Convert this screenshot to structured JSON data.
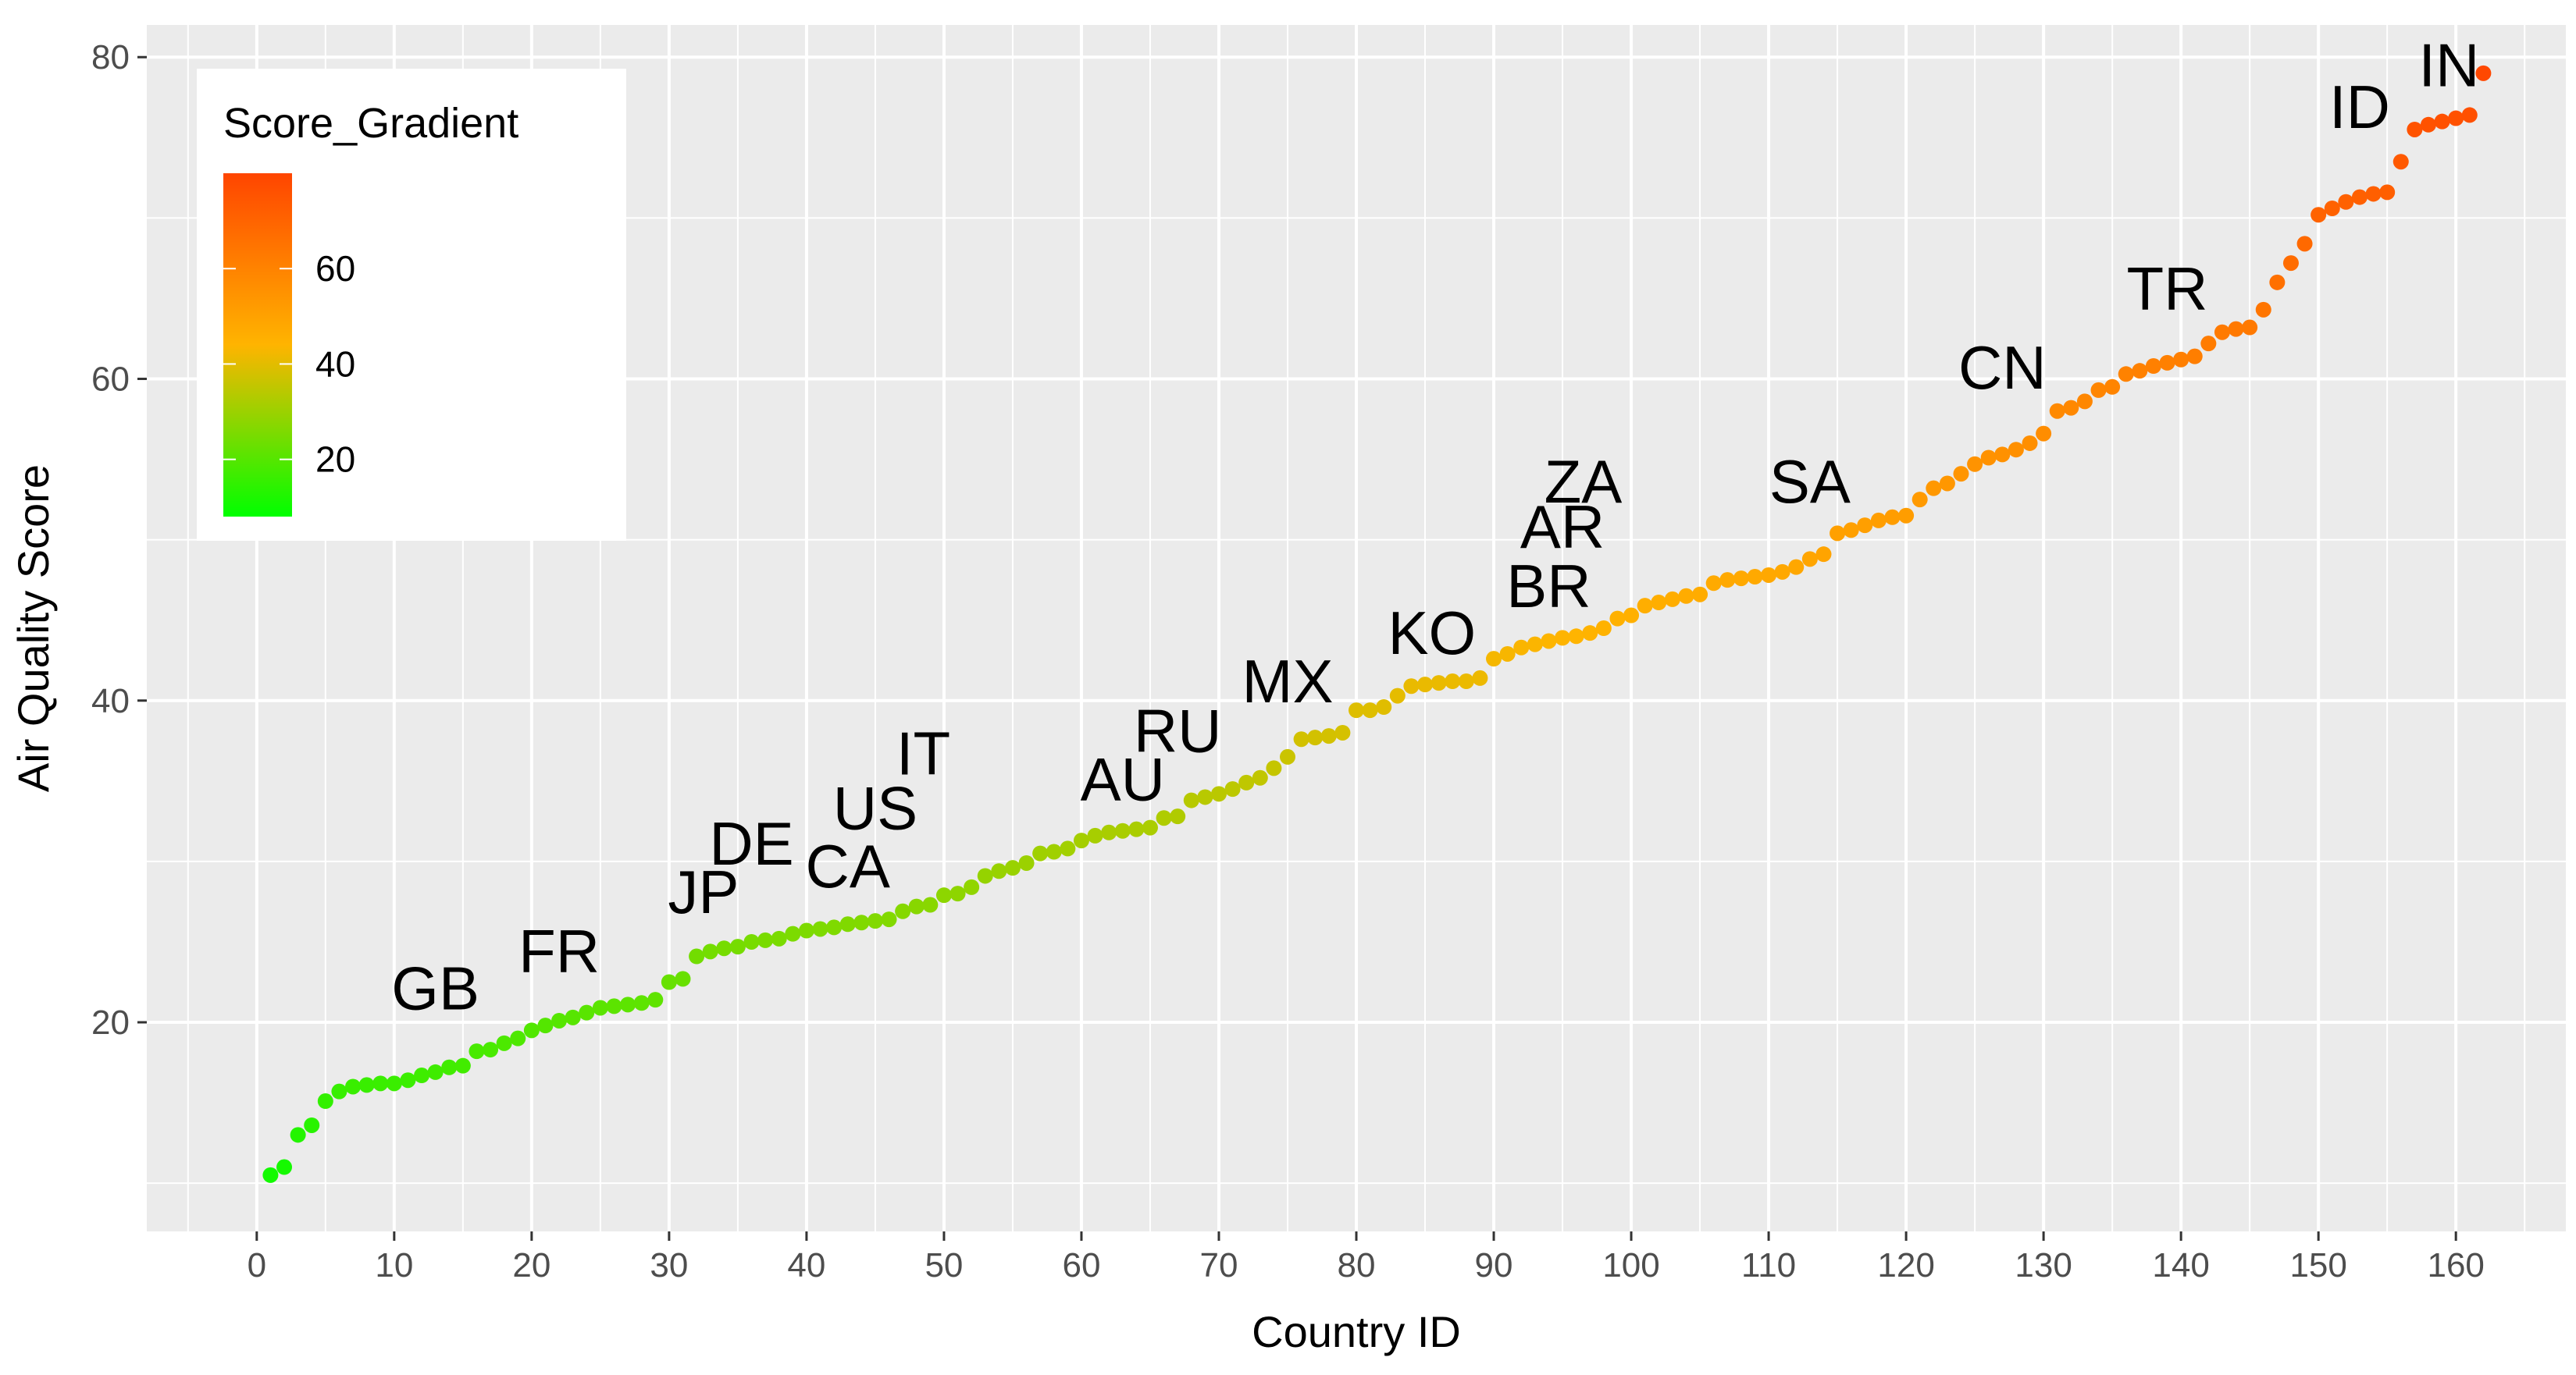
{
  "chart_data": {
    "type": "scatter",
    "xlabel": "Country ID",
    "ylabel": "Air Quality Score",
    "xlim": [
      -8,
      168
    ],
    "ylim": [
      7,
      82
    ],
    "x_ticks": [
      0,
      10,
      20,
      30,
      40,
      50,
      60,
      70,
      80,
      90,
      100,
      110,
      120,
      130,
      140,
      150,
      160
    ],
    "y_ticks": [
      20,
      40,
      60,
      80
    ],
    "grid": true,
    "legend": {
      "title": "Score_Gradient",
      "placement": "top-left",
      "range": [
        8,
        80
      ],
      "ticks": [
        20,
        40,
        60
      ],
      "colors": {
        "low": "#00FF00",
        "mid": "#FFB400",
        "high": "#FF4500"
      }
    },
    "panel_background": "#EBEBEB",
    "points": [
      [
        1,
        10.5
      ],
      [
        2,
        11
      ],
      [
        3,
        13
      ],
      [
        4,
        13.6
      ],
      [
        5,
        15.1
      ],
      [
        6,
        15.7
      ],
      [
        7,
        16.0
      ],
      [
        8,
        16.1
      ],
      [
        9,
        16.2
      ],
      [
        10,
        16.2
      ],
      [
        11,
        16.4
      ],
      [
        12,
        16.7
      ],
      [
        13,
        16.9
      ],
      [
        14,
        17.2
      ],
      [
        15,
        17.3
      ],
      [
        16,
        18.2
      ],
      [
        17,
        18.3
      ],
      [
        18,
        18.7
      ],
      [
        19,
        19.0
      ],
      [
        20,
        19.5
      ],
      [
        21,
        19.8
      ],
      [
        22,
        20.1
      ],
      [
        23,
        20.3
      ],
      [
        24,
        20.6
      ],
      [
        25,
        20.9
      ],
      [
        26,
        21.0
      ],
      [
        27,
        21.1
      ],
      [
        28,
        21.2
      ],
      [
        29,
        21.4
      ],
      [
        30,
        22.5
      ],
      [
        31,
        22.7
      ],
      [
        32,
        24.1
      ],
      [
        33,
        24.4
      ],
      [
        34,
        24.6
      ],
      [
        35,
        24.7
      ],
      [
        36,
        25.0
      ],
      [
        37,
        25.1
      ],
      [
        38,
        25.2
      ],
      [
        39,
        25.5
      ],
      [
        40,
        25.7
      ],
      [
        41,
        25.8
      ],
      [
        42,
        25.9
      ],
      [
        43,
        26.1
      ],
      [
        44,
        26.2
      ],
      [
        45,
        26.3
      ],
      [
        46,
        26.4
      ],
      [
        47,
        26.9
      ],
      [
        48,
        27.2
      ],
      [
        49,
        27.3
      ],
      [
        50,
        27.9
      ],
      [
        51,
        28.0
      ],
      [
        52,
        28.4
      ],
      [
        53,
        29.1
      ],
      [
        54,
        29.4
      ],
      [
        55,
        29.6
      ],
      [
        56,
        29.9
      ],
      [
        57,
        30.5
      ],
      [
        58,
        30.6
      ],
      [
        59,
        30.8
      ],
      [
        60,
        31.3
      ],
      [
        61,
        31.6
      ],
      [
        62,
        31.8
      ],
      [
        63,
        31.9
      ],
      [
        64,
        32.0
      ],
      [
        65,
        32.1
      ],
      [
        66,
        32.7
      ],
      [
        67,
        32.8
      ],
      [
        68,
        33.8
      ],
      [
        69,
        34.0
      ],
      [
        70,
        34.2
      ],
      [
        71,
        34.5
      ],
      [
        72,
        34.9
      ],
      [
        73,
        35.2
      ],
      [
        74,
        35.8
      ],
      [
        75,
        36.5
      ],
      [
        76,
        37.6
      ],
      [
        77,
        37.7
      ],
      [
        78,
        37.8
      ],
      [
        79,
        38.0
      ],
      [
        80,
        39.4
      ],
      [
        81,
        39.4
      ],
      [
        82,
        39.6
      ],
      [
        83,
        40.3
      ],
      [
        84,
        40.9
      ],
      [
        85,
        41.0
      ],
      [
        86,
        41.1
      ],
      [
        87,
        41.2
      ],
      [
        88,
        41.2
      ],
      [
        89,
        41.4
      ],
      [
        90,
        42.6
      ],
      [
        91,
        42.9
      ],
      [
        92,
        43.3
      ],
      [
        93,
        43.5
      ],
      [
        94,
        43.7
      ],
      [
        95,
        43.9
      ],
      [
        96,
        44.0
      ],
      [
        97,
        44.2
      ],
      [
        98,
        44.5
      ],
      [
        99,
        45.1
      ],
      [
        100,
        45.3
      ],
      [
        101,
        45.9
      ],
      [
        102,
        46.1
      ],
      [
        103,
        46.3
      ],
      [
        104,
        46.5
      ],
      [
        105,
        46.6
      ],
      [
        106,
        47.3
      ],
      [
        107,
        47.5
      ],
      [
        108,
        47.6
      ],
      [
        109,
        47.7
      ],
      [
        110,
        47.8
      ],
      [
        111,
        48.0
      ],
      [
        112,
        48.3
      ],
      [
        113,
        48.8
      ],
      [
        114,
        49.1
      ],
      [
        115,
        50.4
      ],
      [
        116,
        50.6
      ],
      [
        117,
        50.9
      ],
      [
        118,
        51.2
      ],
      [
        119,
        51.4
      ],
      [
        120,
        51.5
      ],
      [
        121,
        52.5
      ],
      [
        122,
        53.2
      ],
      [
        123,
        53.5
      ],
      [
        124,
        54.1
      ],
      [
        125,
        54.7
      ],
      [
        126,
        55.1
      ],
      [
        127,
        55.3
      ],
      [
        128,
        55.6
      ],
      [
        129,
        56.0
      ],
      [
        130,
        56.6
      ],
      [
        131,
        58.0
      ],
      [
        132,
        58.2
      ],
      [
        133,
        58.6
      ],
      [
        134,
        59.3
      ],
      [
        135,
        59.5
      ],
      [
        136,
        60.3
      ],
      [
        137,
        60.5
      ],
      [
        138,
        60.8
      ],
      [
        139,
        61.0
      ],
      [
        140,
        61.2
      ],
      [
        141,
        61.4
      ],
      [
        142,
        62.2
      ],
      [
        143,
        62.9
      ],
      [
        144,
        63.1
      ],
      [
        145,
        63.2
      ],
      [
        146,
        64.3
      ],
      [
        147,
        66.0
      ],
      [
        148,
        67.2
      ],
      [
        149,
        68.4
      ],
      [
        150,
        70.2
      ],
      [
        151,
        70.6
      ],
      [
        152,
        71.0
      ],
      [
        153,
        71.3
      ],
      [
        154,
        71.5
      ],
      [
        155,
        71.6
      ],
      [
        156,
        73.5
      ],
      [
        157,
        75.5
      ],
      [
        158,
        75.8
      ],
      [
        159,
        76.0
      ],
      [
        160,
        76.2
      ],
      [
        161,
        76.4
      ],
      [
        162,
        79.0
      ]
    ],
    "labels": [
      {
        "text": "GB",
        "x": 13,
        "y": 20.8
      },
      {
        "text": "FR",
        "x": 22,
        "y": 23.1
      },
      {
        "text": "JP",
        "x": 32.5,
        "y": 26.8
      },
      {
        "text": "DE",
        "x": 36,
        "y": 29.8
      },
      {
        "text": "CA",
        "x": 43,
        "y": 28.4
      },
      {
        "text": "US",
        "x": 45,
        "y": 32.0
      },
      {
        "text": "IT",
        "x": 48.5,
        "y": 35.4
      },
      {
        "text": "AU",
        "x": 63,
        "y": 33.8
      },
      {
        "text": "RU",
        "x": 67,
        "y": 36.8
      },
      {
        "text": "MX",
        "x": 75,
        "y": 39.9
      },
      {
        "text": "KO",
        "x": 85.5,
        "y": 42.9
      },
      {
        "text": "BR",
        "x": 94,
        "y": 45.8
      },
      {
        "text": "AR",
        "x": 95,
        "y": 49.5
      },
      {
        "text": "ZA",
        "x": 96.5,
        "y": 52.3
      },
      {
        "text": "SA",
        "x": 113,
        "y": 52.3
      },
      {
        "text": "CN",
        "x": 127,
        "y": 59.4
      },
      {
        "text": "TR",
        "x": 139,
        "y": 64.3
      },
      {
        "text": "ID",
        "x": 153,
        "y": 75.6
      },
      {
        "text": "IN",
        "x": 159.5,
        "y": 78.2
      }
    ]
  }
}
